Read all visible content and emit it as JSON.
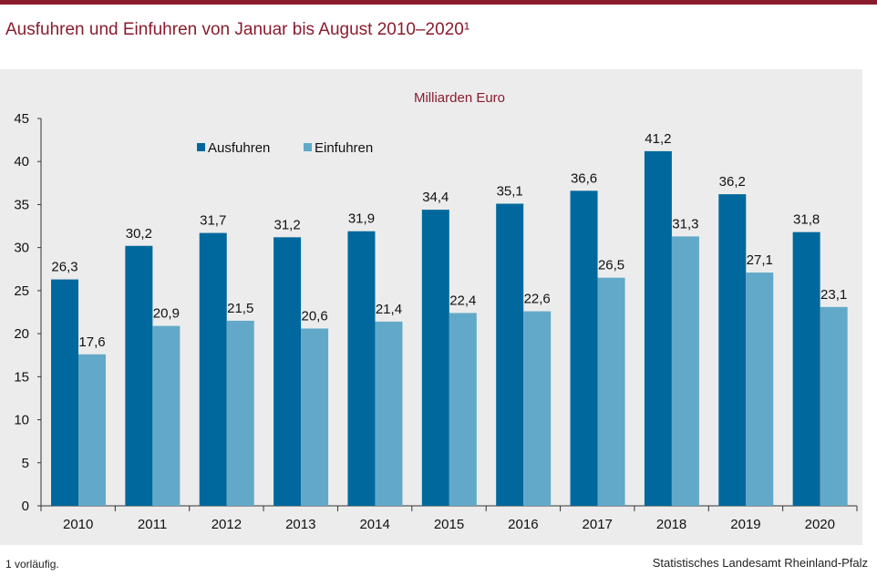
{
  "header": {
    "title": "Ausfuhren und Einfuhren von Januar bis August 2010–2020¹"
  },
  "footer": {
    "footnote": "1 vorläufig.",
    "source": "Statistisches Landesamt Rheinland-Pfalz"
  },
  "colors": {
    "accent": "#8a1c2e",
    "ausfuhren": "#00689c",
    "einfuhren": "#62a9c9",
    "panel": "#ececec"
  },
  "chart_data": {
    "type": "bar",
    "subtitle": "Milliarden Euro",
    "categories": [
      "2010",
      "2011",
      "2012",
      "2013",
      "2014",
      "2015",
      "2016",
      "2017",
      "2018",
      "2019",
      "2020"
    ],
    "series": [
      {
        "name": "Ausfuhren",
        "values": [
          26.3,
          30.2,
          31.7,
          31.2,
          31.9,
          34.4,
          35.1,
          36.6,
          41.2,
          36.2,
          31.8
        ],
        "labels": [
          "26,3",
          "30,2",
          "31,7",
          "31,2",
          "31,9",
          "34,4",
          "35,1",
          "36,6",
          "41,2",
          "36,2",
          "31,8"
        ]
      },
      {
        "name": "Einfuhren",
        "values": [
          17.6,
          20.9,
          21.5,
          20.6,
          21.4,
          22.4,
          22.6,
          26.5,
          31.3,
          27.1,
          23.1
        ],
        "labels": [
          "17,6",
          "20,9",
          "21,5",
          "20,6",
          "21,4",
          "22,4",
          "22,6",
          "26,5",
          "31,3",
          "27,1",
          "23,1"
        ]
      }
    ],
    "ylim": [
      0,
      45
    ],
    "yticks": [
      0,
      5,
      10,
      15,
      20,
      25,
      30,
      35,
      40,
      45
    ],
    "legend": "top-left",
    "grid": false
  }
}
